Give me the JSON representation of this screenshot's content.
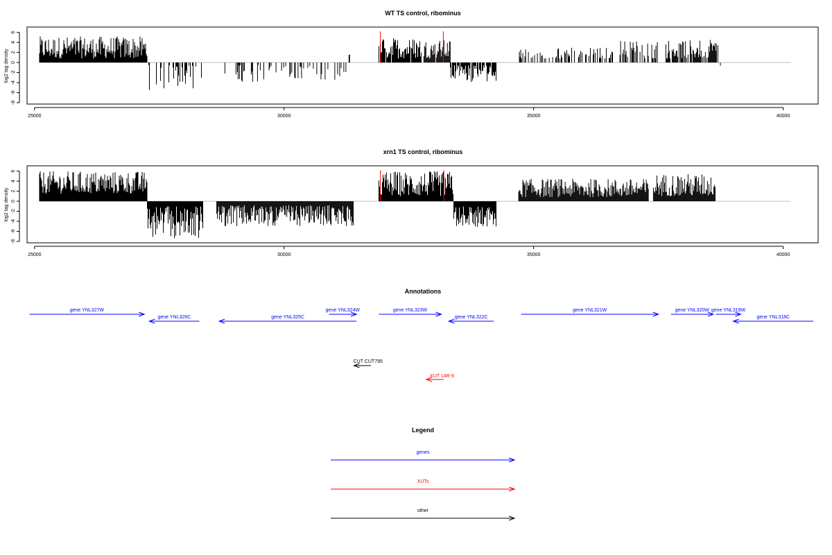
{
  "chart_data": [
    {
      "type": "bar",
      "title": "WT TS control, ribominus",
      "ylabel": "log2 tag density",
      "xlim": [
        24850,
        40700
      ],
      "ylim": [
        -8,
        6.5
      ],
      "xticks": [
        25000,
        30000,
        35000,
        40000
      ],
      "yticks": [
        6,
        4,
        2,
        0,
        -2,
        -4,
        -6,
        -8
      ],
      "baseline_range": [
        25100,
        40150
      ],
      "regions": [
        {
          "start": 25100,
          "end": 27260,
          "sign": 1,
          "min": 0.8,
          "max": 5.2,
          "density": 1.2
        },
        {
          "start": 27260,
          "end": 28400,
          "sign": -1,
          "min": 0.5,
          "max": 5.6,
          "density": 0.35
        },
        {
          "start": 28800,
          "end": 29600,
          "sign": -1,
          "min": 0.5,
          "max": 4.0,
          "density": 0.3
        },
        {
          "start": 29700,
          "end": 30100,
          "sign": -1,
          "min": 0.5,
          "max": 2.5,
          "density": 0.3
        },
        {
          "start": 30100,
          "end": 31250,
          "sign": -1,
          "min": 0.5,
          "max": 3.5,
          "density": 0.35
        },
        {
          "start": 31300,
          "end": 31320,
          "sign": 1,
          "min": 1.5,
          "max": 1.6,
          "density": 1
        },
        {
          "start": 31900,
          "end": 32750,
          "sign": 1,
          "min": 0.8,
          "max": 5.0,
          "density": 0.9
        },
        {
          "start": 32800,
          "end": 33330,
          "sign": 1,
          "min": 0.8,
          "max": 4.5,
          "density": 0.9
        },
        {
          "start": 33330,
          "end": 34250,
          "sign": -1,
          "min": 0.5,
          "max": 4.0,
          "density": 0.9
        },
        {
          "start": 34700,
          "end": 35400,
          "sign": 1,
          "min": 0.8,
          "max": 3.0,
          "density": 0.5
        },
        {
          "start": 35400,
          "end": 36600,
          "sign": 1,
          "min": 0.8,
          "max": 3.0,
          "density": 0.4
        },
        {
          "start": 36700,
          "end": 37500,
          "sign": 1,
          "min": 0.8,
          "max": 4.5,
          "density": 0.5
        },
        {
          "start": 37650,
          "end": 38700,
          "sign": 1,
          "min": 0.8,
          "max": 4.5,
          "density": 0.8
        },
        {
          "start": 38700,
          "end": 39000,
          "sign": -1,
          "min": 0.5,
          "max": 2.1,
          "density": 0.1
        }
      ],
      "highlights": [
        {
          "x": 31930,
          "y": 6.2
        },
        {
          "x": 33190,
          "y": 6.2
        }
      ]
    },
    {
      "type": "bar",
      "title": "xrn1 TS control, ribominus",
      "ylabel": "log2 tag density",
      "xlim": [
        24850,
        40700
      ],
      "ylim": [
        -8,
        6.5
      ],
      "xticks": [
        25000,
        30000,
        35000,
        40000
      ],
      "yticks": [
        6,
        4,
        2,
        0,
        -2,
        -4,
        -6,
        -8
      ],
      "baseline_range": [
        25100,
        40150
      ],
      "regions": [
        {
          "start": 25100,
          "end": 27260,
          "sign": 1,
          "min": 1.5,
          "max": 6.0,
          "density": 1.8
        },
        {
          "start": 27260,
          "end": 28380,
          "sign": -1,
          "min": 1.0,
          "max": 7.5,
          "density": 1.6
        },
        {
          "start": 28650,
          "end": 31400,
          "sign": -1,
          "min": 0.8,
          "max": 5.0,
          "density": 1.3
        },
        {
          "start": 31900,
          "end": 33400,
          "sign": 1,
          "min": 1.0,
          "max": 6.0,
          "density": 1.4
        },
        {
          "start": 33400,
          "end": 34250,
          "sign": -1,
          "min": 1.0,
          "max": 5.2,
          "density": 1.5
        },
        {
          "start": 34700,
          "end": 37300,
          "sign": 1,
          "min": 0.8,
          "max": 4.5,
          "density": 1.1
        },
        {
          "start": 37400,
          "end": 38650,
          "sign": 1,
          "min": 1.0,
          "max": 5.5,
          "density": 1.4
        }
      ],
      "highlights": [
        {
          "x": 31930,
          "y": 6.2
        },
        {
          "x": 33200,
          "y": 6.2
        }
      ]
    }
  ],
  "annotations": {
    "title": "Annotations",
    "genes": [
      {
        "label": "gene YNL327W",
        "start": 24900,
        "end": 27200,
        "dir": "right",
        "row": 1
      },
      {
        "label": "gene YNL326C",
        "start": 27300,
        "end": 28300,
        "dir": "left",
        "row": 2
      },
      {
        "label": "gene YNL325C",
        "start": 28700,
        "end": 31450,
        "dir": "left",
        "row": 2
      },
      {
        "label": "gene YNL324W",
        "start": 30900,
        "end": 31450,
        "dir": "right",
        "row": 1
      },
      {
        "label": "gene YNL323W",
        "start": 31900,
        "end": 33150,
        "dir": "right",
        "row": 1
      },
      {
        "label": "gene YNL322C",
        "start": 33300,
        "end": 34200,
        "dir": "left",
        "row": 2
      },
      {
        "label": "gene YNL321W",
        "start": 34750,
        "end": 37500,
        "dir": "right",
        "row": 1
      },
      {
        "label": "gene YNL320W",
        "start": 37750,
        "end": 38600,
        "dir": "right",
        "row": 1
      },
      {
        "label": "gene YNL319W",
        "start": 38650,
        "end": 39150,
        "dir": "right",
        "row": 1
      },
      {
        "label": "gene YNL318C",
        "start": 39000,
        "end": 40600,
        "dir": "left",
        "row": 2
      }
    ],
    "cuts": [
      {
        "label": "CUT CUT795",
        "start": 31400,
        "end": 31740,
        "dir": "left"
      }
    ],
    "xuts": [
      {
        "label": "XUT 14R-9",
        "start": 32850,
        "end": 33200,
        "dir": "left"
      }
    ]
  },
  "legend": {
    "title": "Legend",
    "items": [
      {
        "label": "genes",
        "color": "#0000ff"
      },
      {
        "label": "XUTs",
        "color": "#ff0000"
      },
      {
        "label": "other",
        "color": "#000000"
      }
    ]
  },
  "colors": {
    "bars": "#000000",
    "highlight": "#ff0000",
    "baseline": "#bebebe",
    "gene": "#0000ff",
    "xut": "#ff0000",
    "cut": "#000000"
  }
}
